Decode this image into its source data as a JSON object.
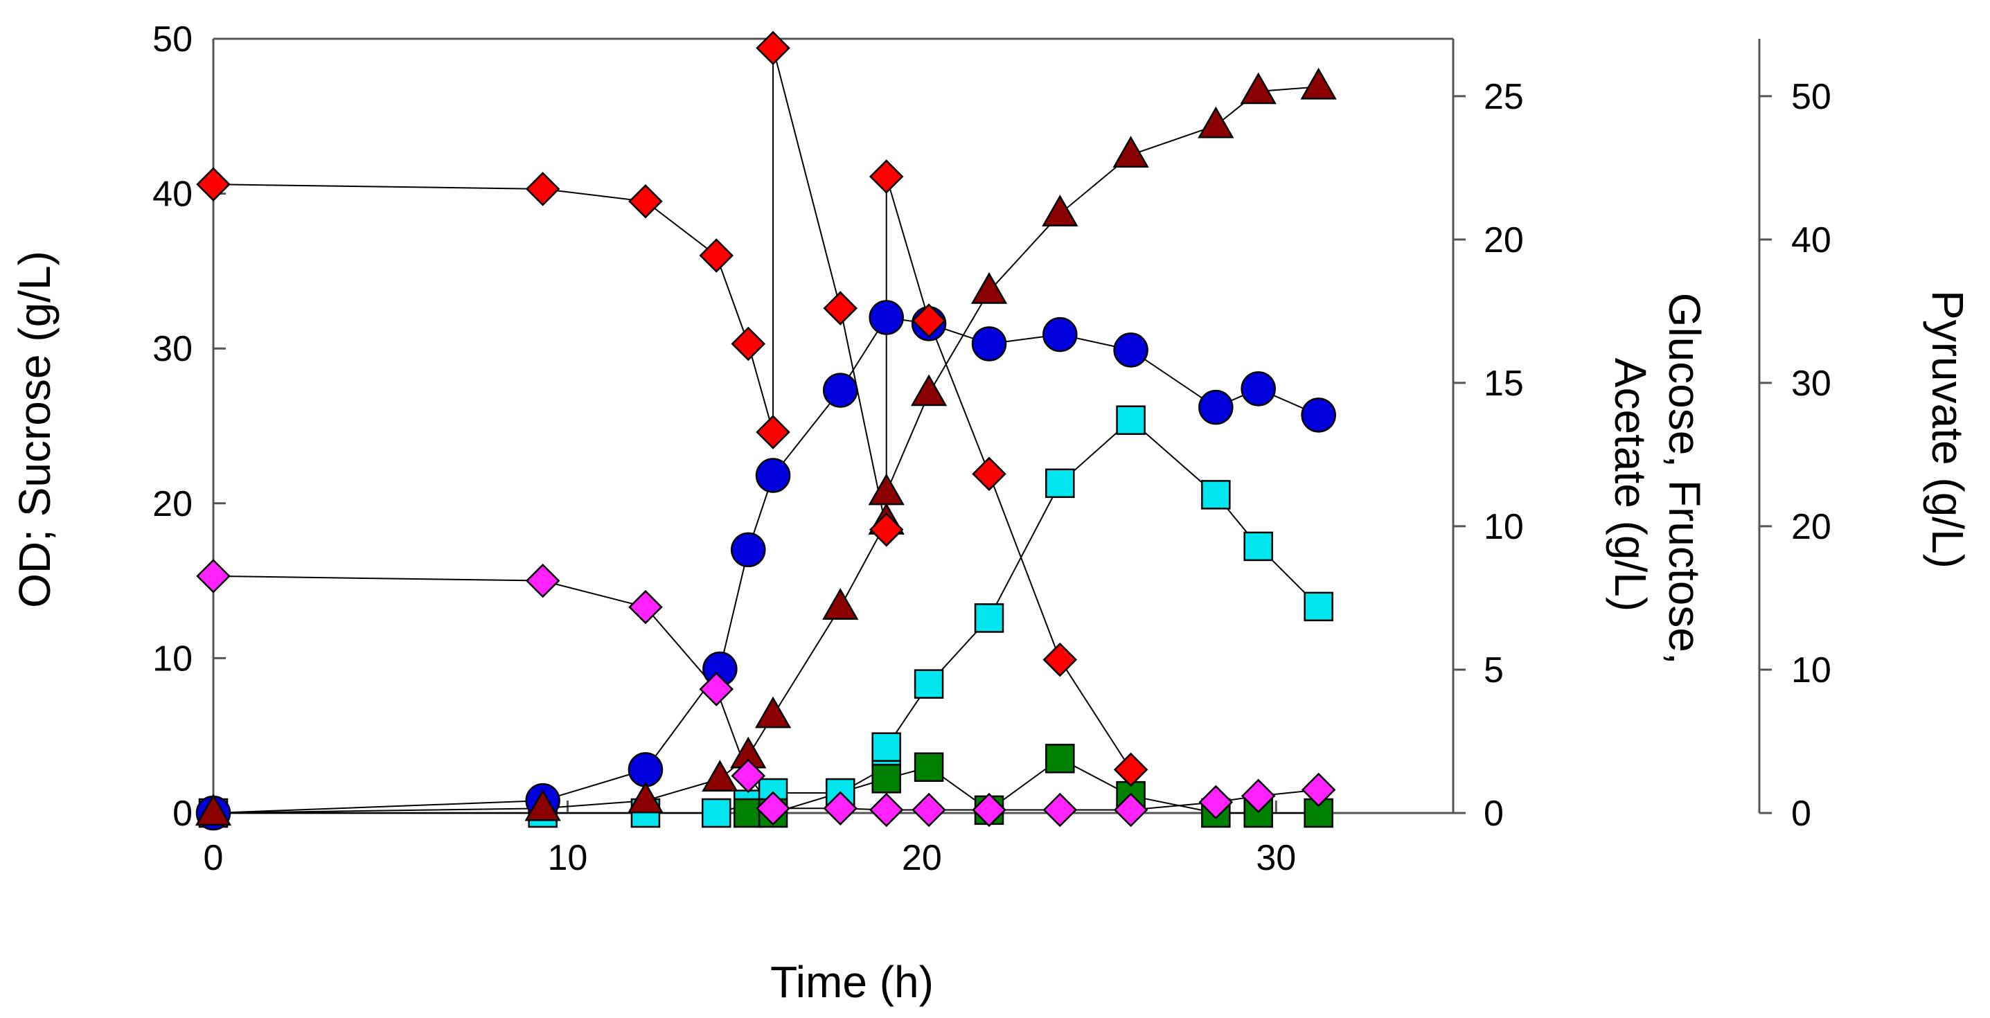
{
  "chart_data": {
    "type": "scatter",
    "title": "",
    "xlabel": "Time (h)",
    "ylabel_left": "OD; Sucrose (g/L)",
    "ylabel_right1": [
      "Glucose, Fructose,",
      "Acetate (g/L)"
    ],
    "ylabel_right2": "Pyruvate (g/L)",
    "xlim": [
      0,
      35
    ],
    "x_ticks": [
      0,
      10,
      20,
      30
    ],
    "x_tick_labels": [
      "0",
      "10",
      "20",
      "30"
    ],
    "ylim_left": [
      0,
      50
    ],
    "y_left_ticks": [
      0,
      10,
      20,
      30,
      40,
      50
    ],
    "y_left_tick_labels": [
      "0",
      "10",
      "20",
      "30",
      "40",
      "50"
    ],
    "ylim_right1": [
      0,
      27
    ],
    "y_right1_ticks": [
      0,
      5,
      10,
      15,
      20,
      25
    ],
    "y_right1_tick_labels": [
      "0",
      "5",
      "10",
      "15",
      "20",
      "25"
    ],
    "ylim_right2": [
      0,
      54
    ],
    "y_right2_ticks": [
      0,
      10,
      20,
      30,
      40,
      50
    ],
    "y_right2_tick_labels": [
      "0",
      "10",
      "20",
      "30",
      "40",
      "50"
    ],
    "grid": false,
    "legend": "none",
    "series": [
      {
        "marker": "circle",
        "color": "#0000dd",
        "axis": "left",
        "x": [
          0,
          9.3,
          12.2,
          14.3,
          15.1,
          15.8,
          17.7,
          19.0,
          20.2,
          21.9,
          23.9,
          25.9,
          28.3,
          29.5,
          31.2
        ],
        "y": [
          0,
          0.8,
          2.8,
          9.3,
          17.0,
          21.8,
          27.3,
          32.0,
          31.6,
          30.3,
          30.9,
          29.9,
          26.2,
          27.4,
          25.7
        ]
      },
      {
        "marker": "triangle",
        "color": "#8b0000",
        "axis": "left",
        "x": [
          0,
          9.3,
          12.2,
          14.3,
          15.1,
          15.8,
          17.7,
          19.0,
          19.0,
          20.2,
          21.9,
          23.9,
          25.9,
          28.3,
          29.5,
          31.2
        ],
        "y": [
          0,
          0.3,
          0.8,
          2.2,
          3.7,
          6.3,
          13.3,
          18.8,
          20.7,
          27.1,
          33.7,
          38.7,
          42.5,
          44.4,
          46.6,
          46.9
        ]
      },
      {
        "marker": "diamond",
        "color": "#ff0000",
        "axis": "left",
        "x": [
          0,
          9.3,
          12.2,
          14.2,
          15.1,
          15.8,
          15.8,
          17.7,
          19.0,
          19.0,
          20.2,
          21.9,
          23.9,
          25.9
        ],
        "y": [
          40.6,
          40.3,
          39.5,
          36.0,
          30.3,
          24.6,
          49.4,
          32.6,
          18.3,
          41.1,
          31.8,
          21.9,
          9.9,
          2.8
        ]
      },
      {
        "marker": "diamond",
        "color": "#ff22ff",
        "axis": "left",
        "x": [
          0,
          9.3,
          12.2,
          14.2,
          15.1,
          15.8,
          17.7,
          19.0,
          20.2,
          21.9,
          23.9,
          25.9,
          28.3,
          29.5,
          31.2
        ],
        "y": [
          15.3,
          15.0,
          13.3,
          8.0,
          2.4,
          0.3,
          0.3,
          0.2,
          0.2,
          0.2,
          0.2,
          0.2,
          0.7,
          1.1,
          1.5
        ]
      },
      {
        "marker": "square",
        "color": "#008000",
        "axis": "right1",
        "x": [
          15.1,
          15.8,
          19.0,
          20.2,
          21.9,
          23.9,
          25.9,
          28.3,
          29.5,
          31.2
        ],
        "y": [
          0,
          0,
          1.2,
          1.6,
          0.1,
          1.9,
          0.6,
          0,
          0,
          0
        ]
      },
      {
        "marker": "square",
        "color": "#00e5ee",
        "axis": "right1",
        "x": [
          0,
          9.3,
          12.2,
          14.2,
          15.1,
          15.8,
          17.7,
          19.0,
          19.0,
          20.2,
          21.9,
          23.9,
          25.9,
          28.3,
          29.5,
          31.2
        ],
        "y": [
          0,
          0,
          0,
          0,
          0.3,
          0.7,
          0.7,
          1.6,
          2.3,
          4.5,
          6.8,
          11.5,
          13.7,
          11.1,
          9.3,
          7.2
        ]
      }
    ]
  }
}
